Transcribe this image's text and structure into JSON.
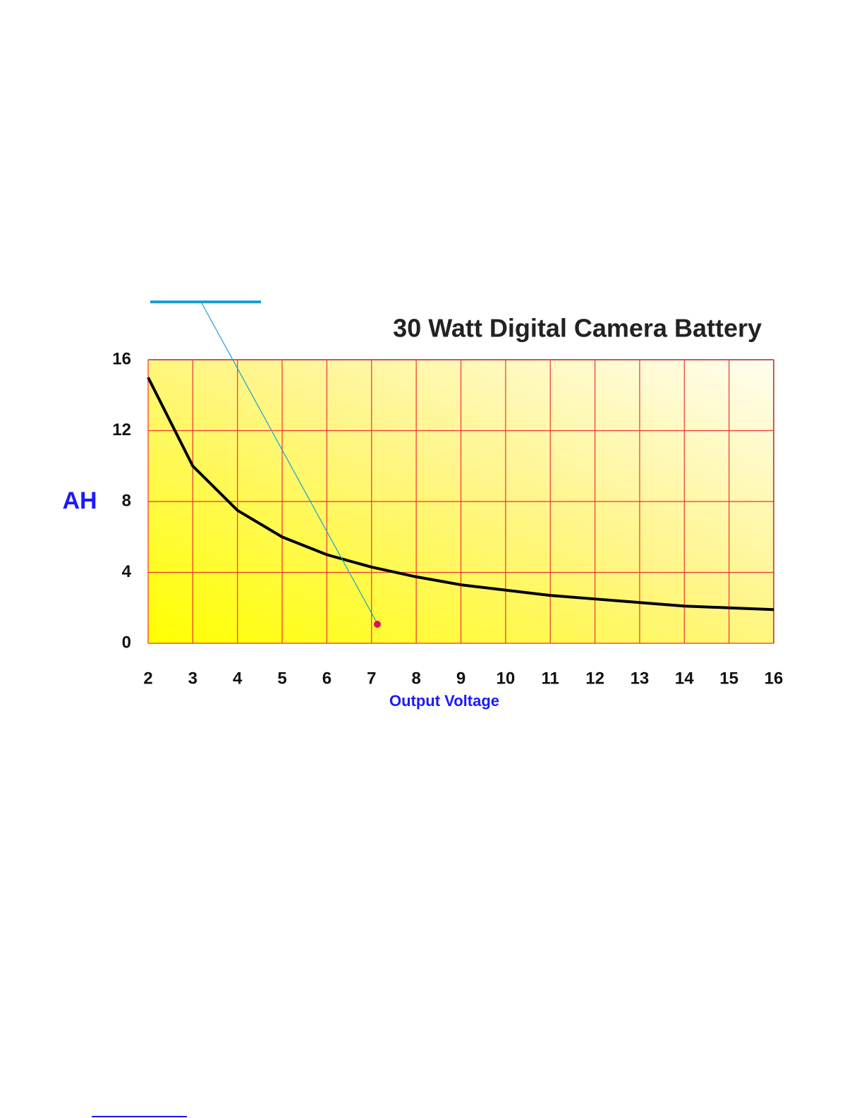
{
  "chart_data": {
    "type": "line",
    "title": "30 Watt Digital Camera Battery",
    "x_label": "Output Voltage",
    "y_label": "AH",
    "x": [
      2,
      3,
      4,
      5,
      6,
      7,
      8,
      9,
      10,
      11,
      12,
      13,
      14,
      15,
      16
    ],
    "series": [
      {
        "name": "AH",
        "color": "#000000",
        "values": [
          15,
          10,
          7.5,
          6,
          5,
          4.3,
          3.75,
          3.3,
          3,
          2.7,
          2.5,
          2.3,
          2.1,
          2,
          1.9
        ]
      }
    ],
    "xlim": [
      2,
      16
    ],
    "xticks": [
      2,
      3,
      4,
      5,
      6,
      7,
      8,
      9,
      10,
      11,
      12,
      13,
      14,
      15,
      16
    ],
    "ylim": [
      0,
      16
    ],
    "yticks": [
      0,
      4,
      8,
      12,
      16
    ],
    "grid": true,
    "grid_color": "#ee3333"
  }
}
